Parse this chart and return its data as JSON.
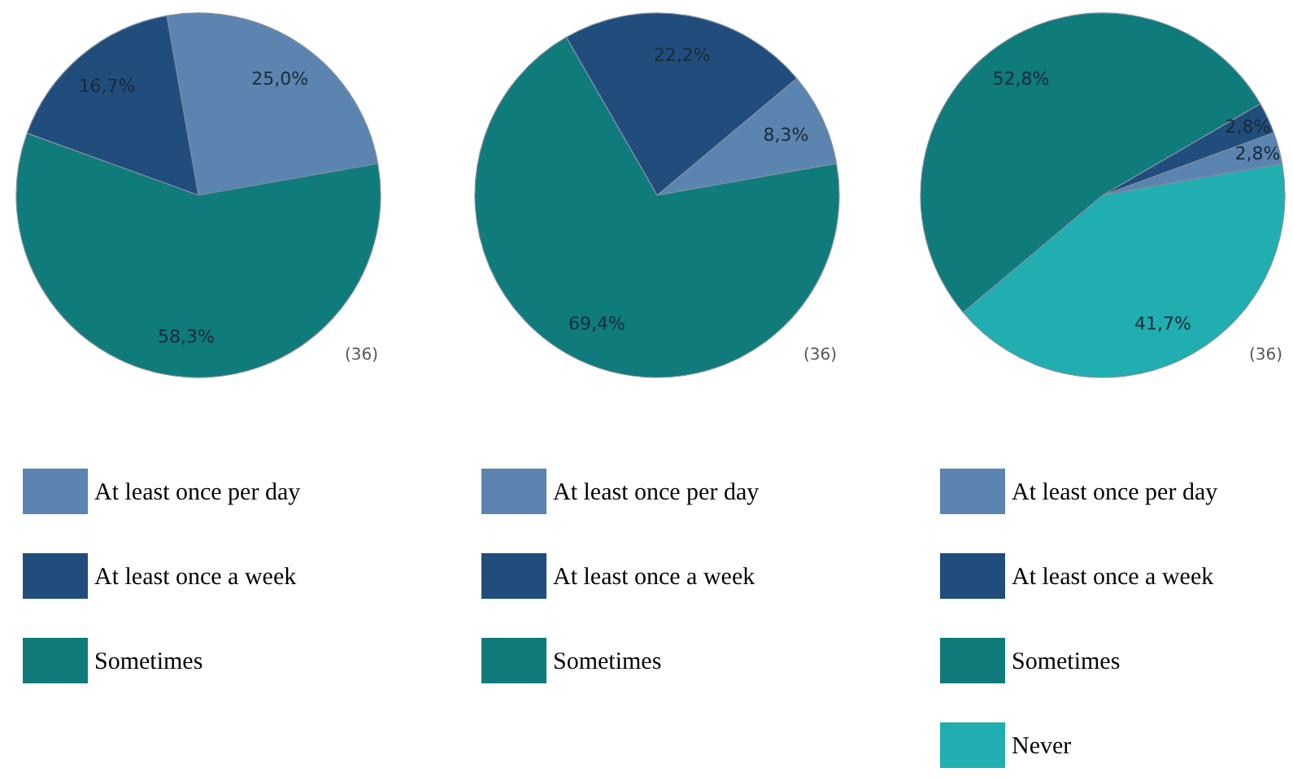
{
  "chart_data": [
    {
      "type": "pie",
      "categories": [
        "At least once per day",
        "At least once a week",
        "Sometimes"
      ],
      "values": [
        25.0,
        16.7,
        58.3
      ],
      "colors": [
        "#5b84b0",
        "#214d7c",
        "#0f7b7b"
      ],
      "value_labels": [
        "25,0%",
        "16,7%",
        "58,3%"
      ],
      "annotations": [
        "(36)"
      ],
      "legend": "bottom"
    },
    {
      "type": "pie",
      "categories": [
        "At least once per day",
        "At least once a week",
        "Sometimes"
      ],
      "values": [
        8.3,
        22.2,
        69.4
      ],
      "colors": [
        "#5b84b0",
        "#214d7c",
        "#0f7b7b"
      ],
      "value_labels": [
        "8,3%",
        "22,2%",
        "69,4%"
      ],
      "annotations": [
        "(36)"
      ],
      "legend": "bottom"
    },
    {
      "type": "pie",
      "categories": [
        "At least once per day",
        "At least once a week",
        "Sometimes",
        "Never"
      ],
      "values": [
        2.8,
        2.8,
        52.8,
        41.7
      ],
      "colors": [
        "#5b84b0",
        "#214d7c",
        "#0f7b7b",
        "#20aeb1"
      ],
      "value_labels": [
        "2,8%",
        "2,8%",
        "52,8%",
        "41,7%"
      ],
      "annotations": [
        "(36)"
      ],
      "legend": "bottom"
    }
  ]
}
